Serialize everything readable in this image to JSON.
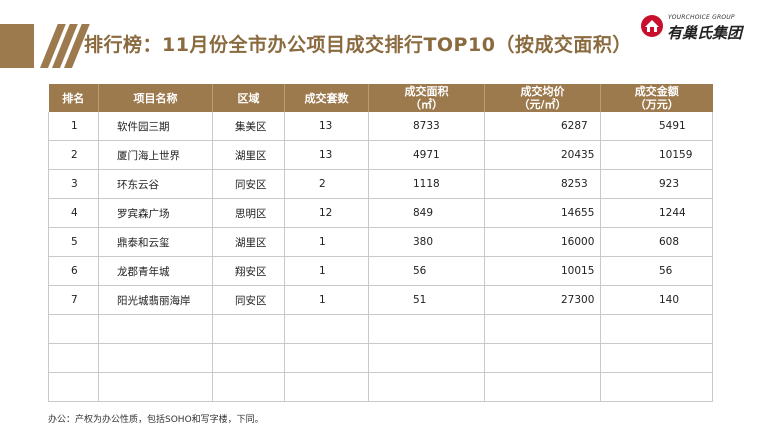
{
  "header": {
    "title": "排行榜：11月份全市办公项目成交排行TOP10（按成交面积）",
    "accent_color": "#9c7a4d"
  },
  "logo": {
    "subtitle": "YOURCHOICE GROUP",
    "name": "有巢氏集团",
    "icon": "house-logo-icon"
  },
  "table": {
    "headers": [
      {
        "line1": "排名",
        "line2": ""
      },
      {
        "line1": "项目名称",
        "line2": ""
      },
      {
        "line1": "区域",
        "line2": ""
      },
      {
        "line1": "成交套数",
        "line2": ""
      },
      {
        "line1": "成交面积",
        "line2": "（㎡）"
      },
      {
        "line1": "成交均价",
        "line2": "（元/㎡）"
      },
      {
        "line1": "成交金额",
        "line2": "（万元）"
      }
    ],
    "rows": [
      [
        "1",
        "软件园三期",
        "集美区",
        "13",
        "8733",
        "6287",
        "5491"
      ],
      [
        "2",
        "厦门海上世界",
        "湖里区",
        "13",
        "4971",
        "20435",
        "10159"
      ],
      [
        "3",
        "环东云谷",
        "同安区",
        "2",
        "1118",
        "8253",
        "923"
      ],
      [
        "4",
        "罗宾森广场",
        "思明区",
        "12",
        "849",
        "14655",
        "1244"
      ],
      [
        "5",
        "鼎泰和云玺",
        "湖里区",
        "1",
        "380",
        "16000",
        "608"
      ],
      [
        "6",
        "龙郡青年城",
        "翔安区",
        "1",
        "56",
        "10015",
        "56"
      ],
      [
        "7",
        "阳光城翡丽海岸",
        "同安区",
        "1",
        "51",
        "27300",
        "140"
      ],
      [
        "",
        "",
        "",
        "",
        "",
        "",
        ""
      ],
      [
        "",
        "",
        "",
        "",
        "",
        "",
        ""
      ],
      [
        "",
        "",
        "",
        "",
        "",
        "",
        ""
      ]
    ]
  },
  "footnote": "办公：产权为办公性质，包括SOHO和写字楼，下同。"
}
